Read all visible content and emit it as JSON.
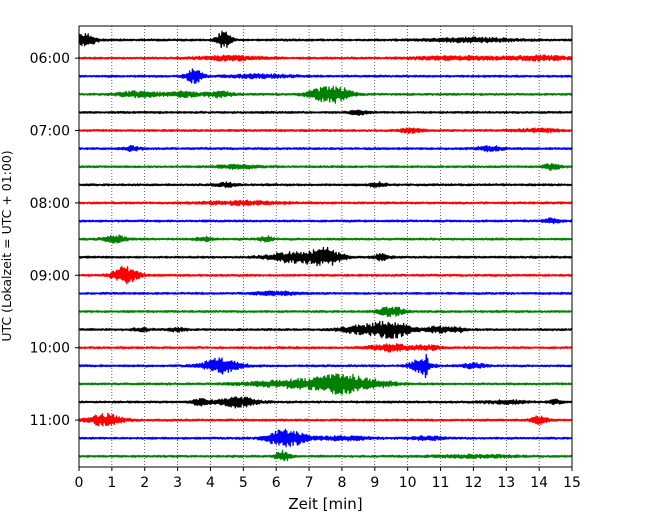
{
  "chart_data": {
    "type": "line",
    "title": "",
    "xlabel": "Zeit  [min]",
    "ylabel": "UTC (Lokalzeit = UTC + 01:00)",
    "xlim": [
      0,
      15
    ],
    "x_ticks": [
      "0",
      "1",
      "2",
      "3",
      "4",
      "5",
      "6",
      "7",
      "8",
      "9",
      "10",
      "11",
      "12",
      "13",
      "14",
      "15"
    ],
    "y_ticks": [
      "06:00",
      "07:00",
      "08:00",
      "09:00",
      "10:00",
      "11:00"
    ],
    "grid": "vertical dotted",
    "colors": [
      "#000000",
      "#ff0000",
      "#0000ff",
      "#008000"
    ],
    "trace_interval_min": 15,
    "start_time": "05:45",
    "traces": [
      {
        "start": "05:45",
        "color": "#000000",
        "events": [
          [
            0.2,
            0.7,
            0.5
          ],
          [
            4.4,
            1.0,
            0.35
          ],
          [
            12.0,
            0.25,
            2.0
          ]
        ]
      },
      {
        "start": "06:00",
        "color": "#ff0000",
        "events": [
          [
            4.6,
            0.25,
            1.5
          ],
          [
            11.5,
            0.2,
            2.0
          ],
          [
            14.0,
            0.25,
            1.5
          ]
        ]
      },
      {
        "start": "06:15",
        "color": "#0000ff",
        "events": [
          [
            3.5,
            0.8,
            0.4
          ],
          [
            5.5,
            0.2,
            1.5
          ]
        ]
      },
      {
        "start": "06:30",
        "color": "#008000",
        "events": [
          [
            1.8,
            0.35,
            1.0
          ],
          [
            3.2,
            0.3,
            0.8
          ],
          [
            4.3,
            0.35,
            0.6
          ],
          [
            7.6,
            0.9,
            0.9
          ],
          [
            8.0,
            0.25,
            0.5
          ]
        ]
      },
      {
        "start": "06:45",
        "color": "#000000",
        "events": [
          [
            8.5,
            0.25,
            0.4
          ]
        ]
      },
      {
        "start": "07:00",
        "color": "#ff0000",
        "events": [
          [
            10.1,
            0.25,
            0.5
          ],
          [
            14.0,
            0.2,
            1.0
          ]
        ]
      },
      {
        "start": "07:15",
        "color": "#0000ff",
        "events": [
          [
            1.6,
            0.25,
            0.4
          ],
          [
            12.5,
            0.3,
            0.6
          ]
        ]
      },
      {
        "start": "07:30",
        "color": "#008000",
        "events": [
          [
            4.8,
            0.2,
            1.0
          ],
          [
            14.4,
            0.35,
            0.4
          ]
        ]
      },
      {
        "start": "07:45",
        "color": "#000000",
        "events": [
          [
            4.5,
            0.25,
            0.5
          ],
          [
            9.1,
            0.25,
            0.4
          ]
        ]
      },
      {
        "start": "08:00",
        "color": "#ff0000",
        "events": [
          [
            5.0,
            0.2,
            2.0
          ]
        ]
      },
      {
        "start": "08:15",
        "color": "#0000ff",
        "events": [
          [
            14.4,
            0.3,
            0.4
          ]
        ]
      },
      {
        "start": "08:30",
        "color": "#008000",
        "events": [
          [
            1.1,
            0.45,
            0.5
          ],
          [
            3.8,
            0.25,
            0.4
          ],
          [
            5.7,
            0.35,
            0.3
          ]
        ]
      },
      {
        "start": "08:45",
        "color": "#000000",
        "events": [
          [
            6.5,
            0.6,
            1.2
          ],
          [
            7.5,
            0.95,
            0.8
          ],
          [
            9.2,
            0.35,
            0.4
          ]
        ]
      },
      {
        "start": "09:00",
        "color": "#ff0000",
        "events": [
          [
            1.4,
            1.0,
            0.6
          ]
        ]
      },
      {
        "start": "09:15",
        "color": "#0000ff",
        "events": [
          [
            6.0,
            0.2,
            1.0
          ]
        ]
      },
      {
        "start": "09:30",
        "color": "#008000",
        "events": [
          [
            9.5,
            0.6,
            0.6
          ]
        ]
      },
      {
        "start": "09:45",
        "color": "#000000",
        "events": [
          [
            1.9,
            0.2,
            0.4
          ],
          [
            3.0,
            0.2,
            0.4
          ],
          [
            8.6,
            0.45,
            1.0
          ],
          [
            9.5,
            1.0,
            0.9
          ],
          [
            10.9,
            0.35,
            0.6
          ],
          [
            11.5,
            0.35,
            0.3
          ]
        ]
      },
      {
        "start": "10:00",
        "color": "#ff0000",
        "events": [
          [
            9.5,
            0.4,
            1.0
          ],
          [
            10.6,
            0.25,
            0.6
          ]
        ]
      },
      {
        "start": "10:15",
        "color": "#0000ff",
        "events": [
          [
            4.3,
            0.85,
            0.9
          ],
          [
            10.4,
            0.9,
            0.5
          ],
          [
            10.55,
            1.0,
            0.1
          ],
          [
            12.0,
            0.25,
            0.6
          ]
        ]
      },
      {
        "start": "10:30",
        "color": "#008000",
        "events": [
          [
            7.0,
            0.55,
            2.5
          ],
          [
            8.0,
            0.9,
            0.9
          ],
          [
            9.0,
            0.35,
            1.0
          ]
        ]
      },
      {
        "start": "10:45",
        "color": "#000000",
        "events": [
          [
            4.8,
            0.6,
            0.9
          ],
          [
            3.7,
            0.35,
            0.4
          ],
          [
            13.0,
            0.2,
            1.0
          ],
          [
            14.5,
            0.25,
            0.3
          ]
        ]
      },
      {
        "start": "11:00",
        "color": "#ff0000",
        "events": [
          [
            0.8,
            0.7,
            0.8
          ],
          [
            14.0,
            0.45,
            0.4
          ]
        ]
      },
      {
        "start": "11:15",
        "color": "#0000ff",
        "events": [
          [
            6.3,
            1.0,
            0.9
          ],
          [
            8.0,
            0.25,
            1.2
          ],
          [
            10.6,
            0.2,
            0.8
          ]
        ]
      },
      {
        "start": "11:30",
        "color": "#008000",
        "events": [
          [
            6.2,
            0.6,
            0.35
          ],
          [
            12.0,
            0.15,
            2.0
          ]
        ]
      }
    ]
  }
}
